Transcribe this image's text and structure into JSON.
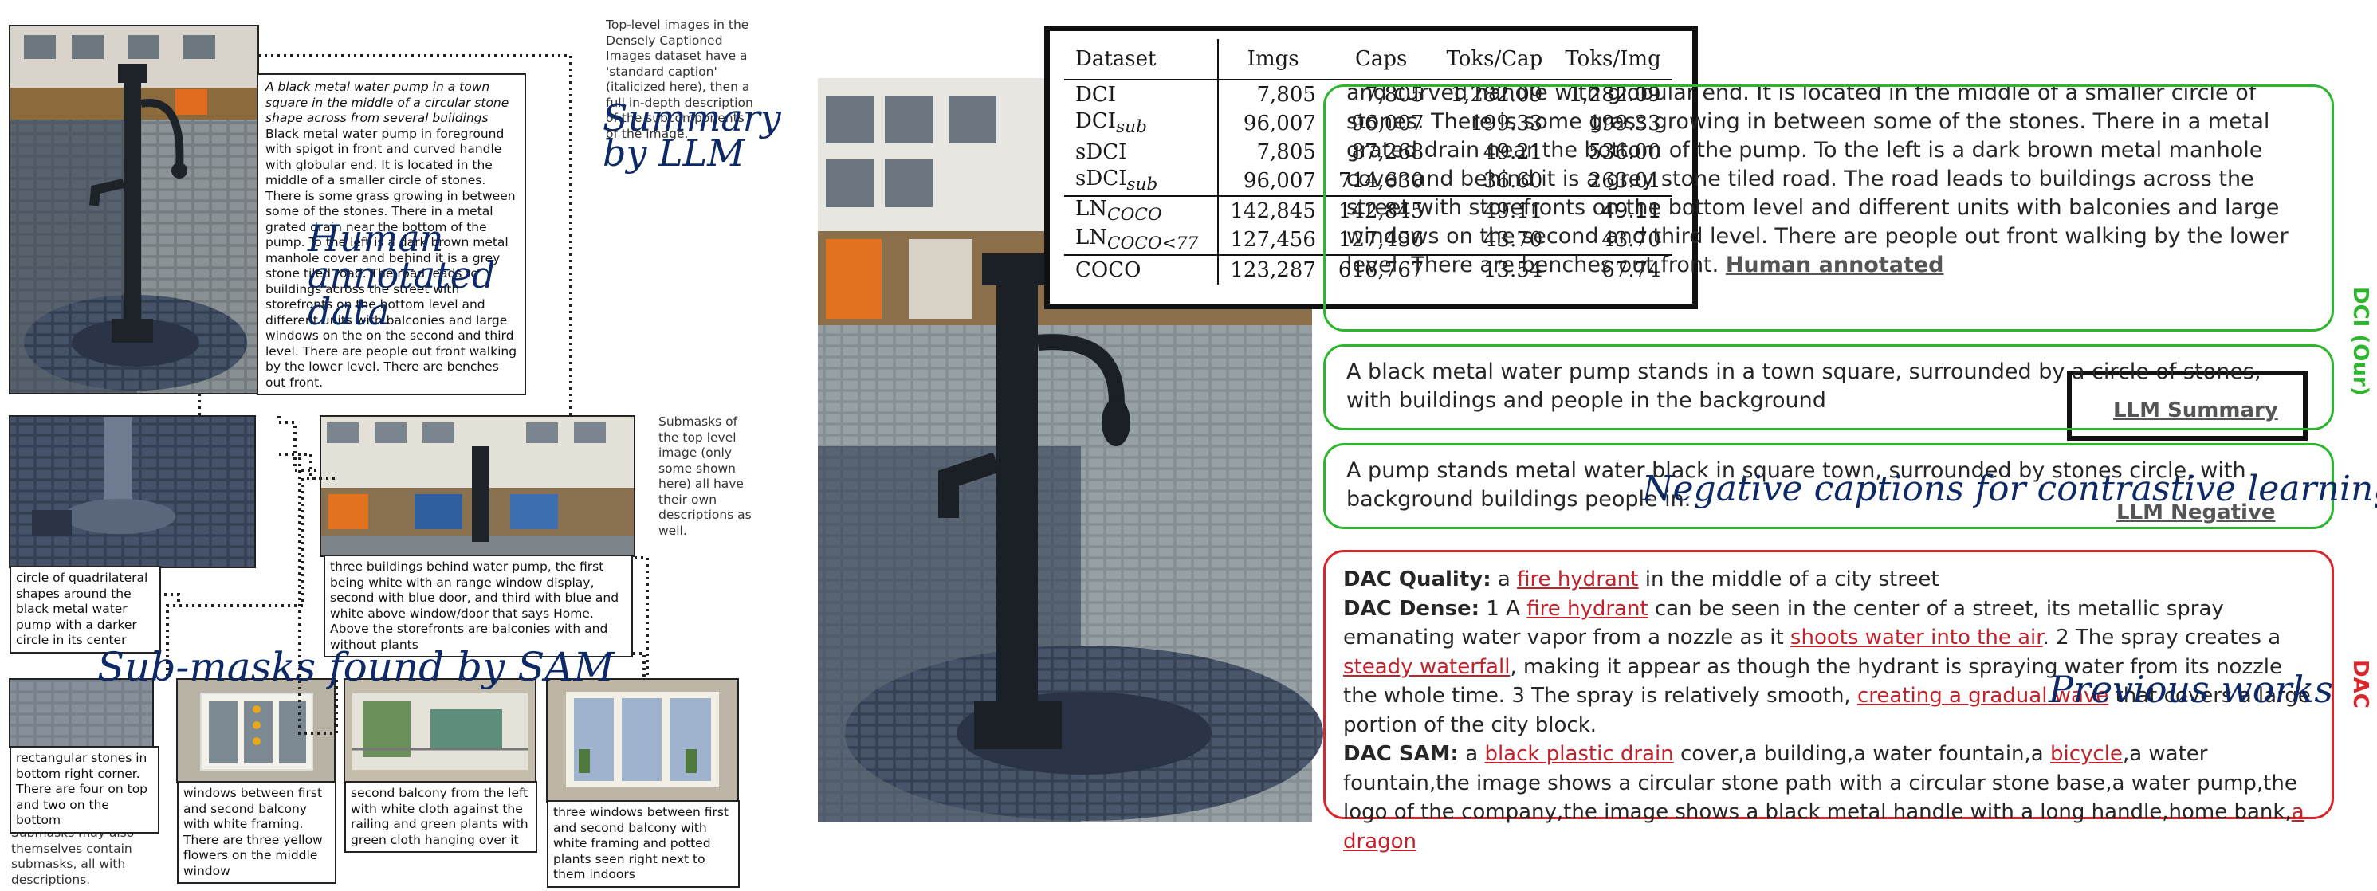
{
  "left": {
    "top_caption_italic": "A black metal water pump in a town square in the middle of a circular stone shape across from several buildings",
    "top_caption_body": "Black metal water pump in foreground with spigot in front and curved handle with globular end. It is located in the middle of a smaller circle of stones. There is some grass growing in between some of the stones. There in a metal grated drain near the bottom of the pump. To the left is a dark brown metal manhole cover and behind it is a grey stone tiled road. The road leads to buildings across the street with storefronts on the bottom level and different units with balconies and large windows on the on the second and third level. There are people out front walking by the lower level. There are benches out front.",
    "note_top": "Top-level images in the Densely Captioned Images dataset have a 'standard caption' (italicized here), then a full in-depth description of the subcomponents of the image.",
    "note_submasks": "Submasks of the top level image (only some shown here) all have their own descriptions as well.",
    "note_bottom": "Submasks may also themselves contain submasks, all with descriptions.",
    "sub_circle": "circle of quadrilateral shapes around the black metal water pump with a darker circle in its center",
    "sub_buildings": "three buildings behind water pump, the first being white with an range window display, second with blue door, and third with blue and white above window/door that says Home. Above the storefronts are balconies with and without plants",
    "sub_stones": "rectangular stones in bottom right corner. There are four on top and two on the bottom",
    "sub_win1": "windows between first and second balcony with white framing. There are three yellow flowers on the middle window",
    "sub_balcony": "second balcony from the left with white cloth against the railing and green plants with green cloth hanging over it",
    "sub_win3": "three windows between first and second balcony with white framing and potted plants seen right next to them indoors",
    "hand_summary": "Summary by LLM",
    "hand_human": "Human annotated data",
    "hand_sam": "Sub-masks found by SAM"
  },
  "table": {
    "headers": [
      "Dataset",
      "Imgs",
      "Caps",
      "Toks/Cap",
      "Toks/Img"
    ],
    "rows": [
      {
        "name": "DCI",
        "sub": "",
        "imgs": "7,805",
        "caps": "7,805",
        "tpc": "1,282.09",
        "tpi": "1,282.09"
      },
      {
        "name": "DCI",
        "sub": "sub",
        "imgs": "96,007",
        "caps": "96,007",
        "tpc": "199.33",
        "tpi": "199.33"
      },
      {
        "name": "sDCI",
        "sub": "",
        "imgs": "7,805",
        "caps": "87,268",
        "tpc": "49.21",
        "tpi": "536.00"
      },
      {
        "name": "sDCI",
        "sub": "sub",
        "imgs": "96,007",
        "caps": "714,630",
        "tpc": "36.60",
        "tpi": "263.01"
      },
      {
        "name": "LN",
        "sub": "COCO",
        "imgs": "142,845",
        "caps": "142,845",
        "tpc": "49.11",
        "tpi": "49.11"
      },
      {
        "name": "LN",
        "sub": "COCO<77",
        "imgs": "127,456",
        "caps": "127,456",
        "tpc": "43.70",
        "tpi": "43.70"
      },
      {
        "name": "COCO",
        "sub": "",
        "imgs": "123,287",
        "caps": "616,767",
        "tpc": "13.54",
        "tpi": "67.74"
      }
    ]
  },
  "right": {
    "human_text": "A black metal water pump in a town square in the middle of a circular stone shape across from several buildings. Black metal water pump in foreground with spigot in front and curved handle with globular end. It is located in the middle of a smaller circle of stones. There is some grass growing in between some of the stones. There in a metal grated drain near the bottom of the pump. To the left is a dark brown metal manhole cover and behind it is a grey stone tiled road. The road leads to buildings across the street with storefronts on the bottom level and different units with balconies and large windows on the second and third level. There are people out front walking by the lower level. There are benches out front.",
    "human_tag": "Human annotated",
    "summary_text": "A black metal water pump stands in a town square, surrounded by a circle of stones, with buildings and people in the background",
    "summary_tag": "LLM Summary",
    "negative_text": "A pump stands metal water black in square town, surrounded by stones circle, with background buildings people in.",
    "negative_tag": "LLM Negative",
    "dci_label": "DCI (Our)",
    "dac_label": "DAC",
    "hand_negative": "Negative captions for contrastive learning",
    "hand_previous": "Previous works",
    "dac_quality_label": "DAC Quality:",
    "dac_quality_pre": " a ",
    "dac_quality_bad": "fire hydrant",
    "dac_quality_post": " in the middle of a city street",
    "dac_dense_label": "DAC Dense:",
    "dac_dense_1": " 1 A ",
    "dac_dense_b1": "fire hydrant",
    "dac_dense_2": " can be seen in the center of a street, its metallic spray emanating water vapor from a nozzle as it ",
    "dac_dense_b2": "shoots water into the air",
    "dac_dense_3": ". 2 The spray creates a ",
    "dac_dense_b3": "steady waterfall",
    "dac_dense_4": ", making it appear as though the hydrant is spraying water from its nozzle the whole time. 3 The spray is relatively smooth, ",
    "dac_dense_b4": "creating a gradual wave",
    "dac_dense_5": " that covers a large portion of the city block.",
    "dac_sam_label": "DAC SAM:",
    "dac_sam_1": " a ",
    "dac_sam_b1": "black plastic drain",
    "dac_sam_2": " cover,a building,a water fountain,a ",
    "dac_sam_b2": "bicycle",
    "dac_sam_3": ",a water fountain,the image shows a circular stone path with a circular stone base,a water pump,the logo of the company,the image shows a black metal handle with a long handle,home bank,",
    "dac_sam_b3": "a dragon"
  },
  "colors": {
    "green": "#2db52d",
    "red": "#d9262b",
    "handwriting": "#0e2a66"
  }
}
